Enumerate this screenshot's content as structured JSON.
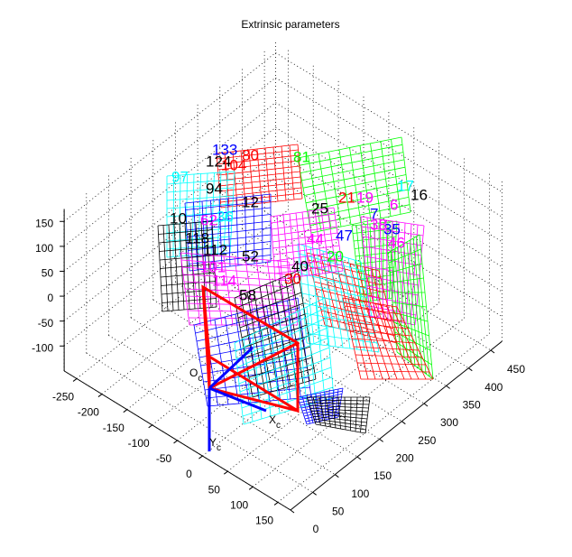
{
  "chart_data": {
    "type": "extrinsic-3d",
    "title": "Extrinsic parameters",
    "xlim": [
      -275,
      175
    ],
    "xticks": [
      -250,
      -200,
      -150,
      -100,
      -50,
      0,
      50,
      100,
      150
    ],
    "ylim": [
      0,
      475
    ],
    "yticks": [
      0,
      50,
      100,
      150,
      200,
      250,
      300,
      350,
      400,
      450
    ],
    "zlim": [
      -150,
      175
    ],
    "zticks": [
      -100,
      -50,
      0,
      50,
      100,
      150
    ],
    "grid": true,
    "board_colors": [
      "#00ff00",
      "#ff0000",
      "#00ffff",
      "#0000ff",
      "#000000",
      "#ff00ff"
    ],
    "camera": {
      "frame_color": "#ff0000",
      "axis_color": "#0000ff",
      "labels": [
        {
          "main": "O",
          "sub": "c"
        },
        {
          "main": "X",
          "sub": "c"
        },
        {
          "main": "Y",
          "sub": "c"
        }
      ]
    },
    "board_labels": [
      {
        "text": "133",
        "color": "#0000ff"
      },
      {
        "text": "80",
        "color": "#ff0000"
      },
      {
        "text": "124",
        "color": "#000000"
      },
      {
        "text": "104",
        "color": "#ff0000"
      },
      {
        "text": "81",
        "color": "#00ff00"
      },
      {
        "text": "97",
        "color": "#00ffff"
      },
      {
        "text": "94",
        "color": "#000000"
      },
      {
        "text": "16",
        "color": "#000000"
      },
      {
        "text": "21",
        "color": "#ff0000"
      },
      {
        "text": "19",
        "color": "#ff00ff"
      },
      {
        "text": "6",
        "color": "#ff00ff"
      },
      {
        "text": "25",
        "color": "#000000"
      },
      {
        "text": "17",
        "color": "#00ffff"
      },
      {
        "text": "7",
        "color": "#0000ff"
      },
      {
        "text": "35",
        "color": "#0000ff"
      },
      {
        "text": "38",
        "color": "#ff00ff"
      },
      {
        "text": "46",
        "color": "#ff00ff"
      },
      {
        "text": "112",
        "color": "#000000"
      },
      {
        "text": "52",
        "color": "#000000"
      },
      {
        "text": "118",
        "color": "#000000"
      },
      {
        "text": "101",
        "color": "#ff00ff"
      },
      {
        "text": "58",
        "color": "#000000"
      },
      {
        "text": "40",
        "color": "#000000"
      },
      {
        "text": "62",
        "color": "#ff00ff"
      },
      {
        "text": "12",
        "color": "#000000"
      },
      {
        "text": "10",
        "color": "#000000"
      },
      {
        "text": "114",
        "color": "#ff00ff"
      },
      {
        "text": "47",
        "color": "#0000ff"
      },
      {
        "text": "44",
        "color": "#ff00ff"
      },
      {
        "text": "20",
        "color": "#00ff00"
      },
      {
        "text": "36",
        "color": "#00ffff"
      },
      {
        "text": "30",
        "color": "#ff0000"
      }
    ]
  }
}
